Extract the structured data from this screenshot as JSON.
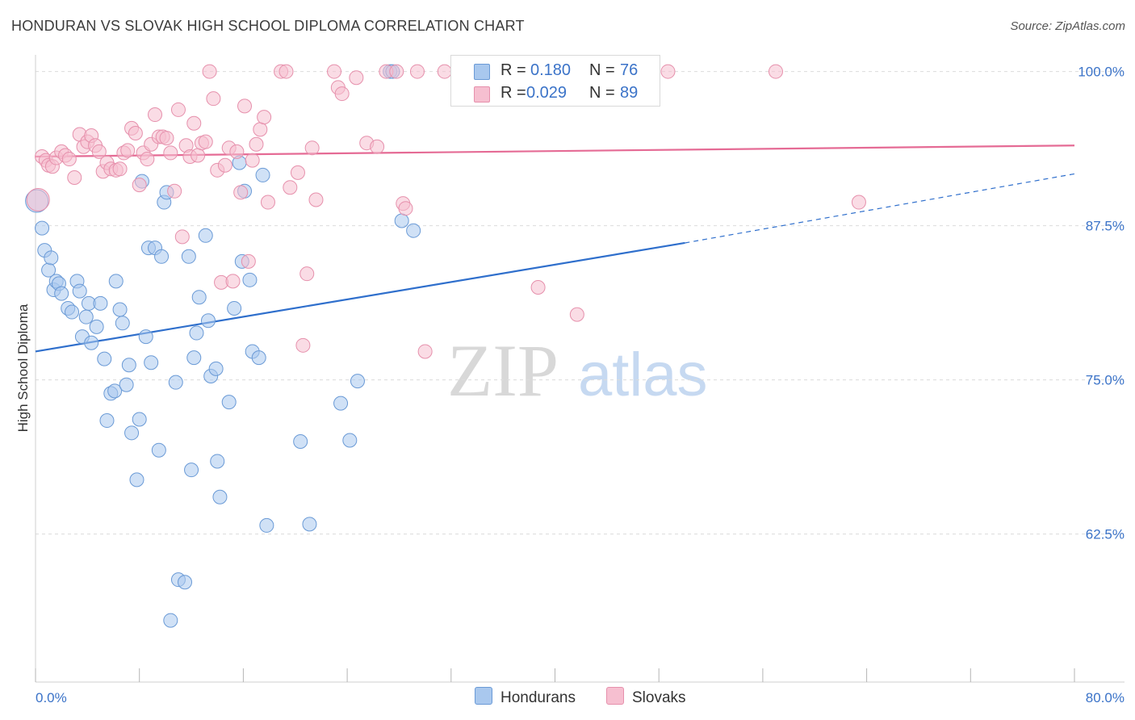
{
  "title": "HONDURAN VS SLOVAK HIGH SCHOOL DIPLOMA CORRELATION CHART",
  "source": "Source: ZipAtlas.com",
  "watermark": {
    "part1": "ZIP",
    "part2": "atlas"
  },
  "legend": {
    "rows": [
      {
        "r_label": "R =",
        "r_value": "0.180",
        "n_label": "N =",
        "n_value": "76"
      },
      {
        "r_label": "R =",
        "r_value": "0.029",
        "n_label": "N =",
        "n_value": "89"
      }
    ]
  },
  "bottom_legend": {
    "hondurans": "Hondurans",
    "slovaks": "Slovaks"
  },
  "colors": {
    "blue_fill": "#a9c8ee",
    "blue_stroke": "#6a9ad6",
    "blue_line": "#2f6fcc",
    "pink_fill": "#f6bfd0",
    "pink_stroke": "#e690ac",
    "pink_line": "#e56b95",
    "axis_label": "#3b73c8"
  },
  "chart_data": {
    "type": "scatter",
    "title": "HONDURAN VS SLOVAK HIGH SCHOOL DIPLOMA CORRELATION CHART",
    "xlabel": "",
    "ylabel": "High School Diploma",
    "xlim": [
      0,
      80
    ],
    "ylim": [
      50.5,
      102
    ],
    "x_tick_labels": [
      "0.0%",
      "80.0%"
    ],
    "y_ticks": [
      62.5,
      75.0,
      87.5,
      100.0
    ],
    "y_tick_labels": [
      "62.5%",
      "75.0%",
      "87.5%",
      "100.0%"
    ],
    "grid": "horizontal dashed",
    "legend_position": "top-center",
    "series": [
      {
        "name": "Hondurans",
        "R": 0.18,
        "N": 76,
        "trend": {
          "x0": 0,
          "y0": 77.3,
          "x1": 50,
          "y1": 86.1,
          "dashed_to_x": 80,
          "dashed_to_y": 91.7
        },
        "points": [
          [
            0.1,
            89.5
          ],
          [
            0.5,
            87.3
          ],
          [
            0.7,
            85.5
          ],
          [
            1.0,
            83.9
          ],
          [
            1.2,
            84.9
          ],
          [
            1.4,
            82.3
          ],
          [
            1.6,
            83.0
          ],
          [
            1.8,
            82.8
          ],
          [
            2.0,
            82.0
          ],
          [
            2.5,
            80.8
          ],
          [
            2.8,
            80.5
          ],
          [
            3.2,
            83.0
          ],
          [
            3.4,
            82.2
          ],
          [
            3.6,
            78.5
          ],
          [
            3.9,
            80.1
          ],
          [
            4.1,
            81.2
          ],
          [
            4.3,
            78.0
          ],
          [
            4.7,
            79.3
          ],
          [
            5.0,
            81.2
          ],
          [
            5.3,
            76.7
          ],
          [
            5.5,
            71.7
          ],
          [
            5.8,
            73.9
          ],
          [
            6.1,
            74.1
          ],
          [
            6.2,
            83.0
          ],
          [
            6.5,
            80.7
          ],
          [
            6.7,
            79.6
          ],
          [
            7.0,
            74.6
          ],
          [
            7.2,
            76.2
          ],
          [
            7.4,
            70.7
          ],
          [
            7.8,
            66.9
          ],
          [
            8.0,
            71.8
          ],
          [
            8.2,
            91.1
          ],
          [
            8.5,
            78.5
          ],
          [
            8.7,
            85.7
          ],
          [
            8.9,
            76.4
          ],
          [
            9.2,
            85.7
          ],
          [
            9.5,
            69.3
          ],
          [
            9.7,
            85.0
          ],
          [
            9.9,
            89.4
          ],
          [
            10.1,
            90.2
          ],
          [
            10.4,
            55.5
          ],
          [
            10.8,
            74.8
          ],
          [
            11.0,
            58.8
          ],
          [
            11.5,
            58.6
          ],
          [
            11.8,
            85.0
          ],
          [
            12.0,
            67.7
          ],
          [
            12.2,
            76.8
          ],
          [
            12.4,
            78.8
          ],
          [
            12.6,
            81.7
          ],
          [
            13.1,
            86.7
          ],
          [
            13.3,
            79.8
          ],
          [
            13.5,
            75.3
          ],
          [
            13.9,
            75.9
          ],
          [
            14.0,
            68.4
          ],
          [
            14.2,
            65.5
          ],
          [
            14.9,
            73.2
          ],
          [
            15.3,
            80.8
          ],
          [
            15.7,
            92.6
          ],
          [
            15.9,
            84.6
          ],
          [
            16.1,
            90.3
          ],
          [
            16.5,
            83.1
          ],
          [
            16.7,
            77.3
          ],
          [
            17.2,
            76.8
          ],
          [
            17.5,
            91.6
          ],
          [
            17.8,
            63.2
          ],
          [
            20.4,
            70.0
          ],
          [
            21.1,
            63.3
          ],
          [
            23.5,
            73.1
          ],
          [
            24.2,
            70.1
          ],
          [
            24.8,
            74.9
          ],
          [
            27.3,
            100.0
          ],
          [
            27.5,
            100.0
          ],
          [
            28.2,
            87.9
          ],
          [
            29.1,
            87.1
          ],
          [
            42.2,
            100.0
          ],
          [
            45.1,
            100.0
          ]
        ]
      },
      {
        "name": "Slovaks",
        "R": 0.029,
        "N": 89,
        "trend": {
          "x0": 0,
          "y0": 93.1,
          "x1": 80,
          "y1": 94.0
        },
        "points": [
          [
            0.2,
            89.6
          ],
          [
            0.5,
            93.1
          ],
          [
            0.8,
            92.8
          ],
          [
            1.0,
            92.4
          ],
          [
            1.3,
            92.3
          ],
          [
            1.6,
            93.0
          ],
          [
            2.0,
            93.5
          ],
          [
            2.3,
            93.2
          ],
          [
            2.6,
            92.9
          ],
          [
            3.0,
            91.4
          ],
          [
            3.4,
            94.9
          ],
          [
            3.7,
            93.9
          ],
          [
            4.0,
            94.3
          ],
          [
            4.3,
            94.8
          ],
          [
            4.6,
            94.0
          ],
          [
            4.9,
            93.5
          ],
          [
            5.2,
            91.9
          ],
          [
            5.5,
            92.6
          ],
          [
            5.8,
            92.1
          ],
          [
            6.2,
            92.0
          ],
          [
            6.5,
            92.1
          ],
          [
            6.8,
            93.4
          ],
          [
            7.1,
            93.6
          ],
          [
            7.4,
            95.4
          ],
          [
            7.7,
            95.0
          ],
          [
            8.0,
            90.8
          ],
          [
            8.3,
            93.4
          ],
          [
            8.6,
            92.9
          ],
          [
            8.9,
            94.1
          ],
          [
            9.2,
            96.5
          ],
          [
            9.5,
            94.7
          ],
          [
            9.8,
            94.7
          ],
          [
            10.1,
            94.6
          ],
          [
            10.4,
            93.4
          ],
          [
            10.7,
            90.3
          ],
          [
            11.0,
            96.9
          ],
          [
            11.3,
            86.6
          ],
          [
            11.6,
            94.0
          ],
          [
            11.9,
            93.1
          ],
          [
            12.2,
            95.8
          ],
          [
            12.5,
            93.2
          ],
          [
            12.8,
            94.2
          ],
          [
            13.1,
            94.3
          ],
          [
            13.4,
            100.0
          ],
          [
            13.7,
            97.8
          ],
          [
            14.0,
            92.0
          ],
          [
            14.3,
            82.9
          ],
          [
            14.6,
            92.4
          ],
          [
            14.9,
            93.8
          ],
          [
            15.2,
            83.0
          ],
          [
            15.5,
            93.5
          ],
          [
            15.8,
            90.2
          ],
          [
            16.1,
            97.2
          ],
          [
            16.4,
            84.6
          ],
          [
            16.7,
            92.8
          ],
          [
            17.0,
            94.1
          ],
          [
            17.3,
            95.3
          ],
          [
            17.6,
            96.3
          ],
          [
            17.9,
            89.4
          ],
          [
            18.9,
            100.0
          ],
          [
            19.3,
            100.0
          ],
          [
            19.6,
            90.6
          ],
          [
            20.2,
            91.8
          ],
          [
            20.6,
            77.8
          ],
          [
            20.9,
            83.6
          ],
          [
            21.3,
            93.8
          ],
          [
            21.6,
            89.6
          ],
          [
            23.0,
            100.0
          ],
          [
            23.3,
            98.7
          ],
          [
            23.6,
            98.2
          ],
          [
            24.7,
            99.5
          ],
          [
            25.5,
            94.2
          ],
          [
            26.3,
            93.9
          ],
          [
            27.0,
            100.0
          ],
          [
            27.8,
            100.0
          ],
          [
            28.3,
            89.3
          ],
          [
            28.5,
            88.9
          ],
          [
            29.4,
            100.0
          ],
          [
            30.0,
            77.3
          ],
          [
            31.5,
            100.0
          ],
          [
            32.5,
            100.0
          ],
          [
            36.5,
            100.0
          ],
          [
            38.7,
            82.5
          ],
          [
            41.5,
            100.0
          ],
          [
            41.7,
            80.3
          ],
          [
            47.0,
            100.0
          ],
          [
            48.7,
            100.0
          ],
          [
            57.0,
            100.0
          ],
          [
            63.4,
            89.4
          ]
        ]
      }
    ]
  }
}
